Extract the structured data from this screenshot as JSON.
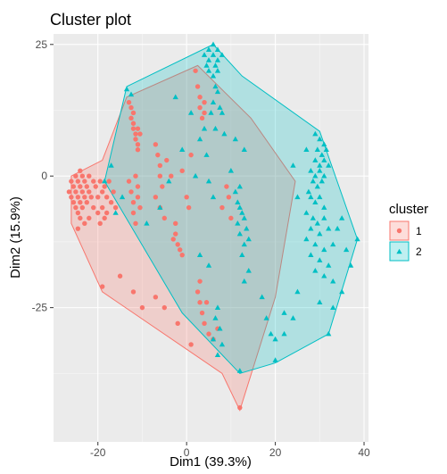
{
  "chart_data": {
    "type": "scatter",
    "title": "Cluster plot",
    "xlabel": "Dim1 (39.3%)",
    "ylabel": "Dim2 (15.9%)",
    "xlim": [
      -30,
      41
    ],
    "ylim": [
      -50.5,
      27
    ],
    "x_ticks": [
      -20,
      0,
      20,
      40
    ],
    "x_tick_labels": [
      "-20",
      "0",
      "20",
      "40"
    ],
    "y_ticks": [
      25,
      0,
      -25
    ],
    "y_tick_labels": [
      "25",
      "0",
      "-25"
    ],
    "grid": true,
    "panel_background": "#ebebeb",
    "legend_position": "right",
    "legend": {
      "title": "cluster",
      "entries": [
        {
          "label": "1",
          "color": "#f8766d",
          "shape": "circle"
        },
        {
          "label": "2",
          "color": "#00bfc4",
          "shape": "triangle"
        }
      ]
    },
    "series": [
      {
        "name": "1",
        "color": "#f8766d",
        "shape": "circle",
        "hull": [
          [
            -26,
            0
          ],
          [
            -19,
            3
          ],
          [
            -13.5,
            15
          ],
          [
            2.5,
            21
          ],
          [
            14.5,
            11
          ],
          [
            24.5,
            -1
          ],
          [
            20,
            -23
          ],
          [
            12,
            -44.5
          ],
          [
            8,
            -37.5
          ],
          [
            -19,
            -22
          ],
          [
            -26,
            -9
          ]
        ],
        "points": [
          [
            -26.5,
            -3
          ],
          [
            -26,
            -1
          ],
          [
            -26,
            -4
          ],
          [
            -25.5,
            -2
          ],
          [
            -25.5,
            -5
          ],
          [
            -25,
            0
          ],
          [
            -25,
            -3
          ],
          [
            -25,
            -6
          ],
          [
            -24.5,
            -1
          ],
          [
            -24.5,
            -4
          ],
          [
            -24.5,
            -7
          ],
          [
            -24,
            1
          ],
          [
            -24,
            -2
          ],
          [
            -24,
            -5
          ],
          [
            -24,
            -8
          ],
          [
            -23.5,
            0
          ],
          [
            -23.5,
            -3
          ],
          [
            -23.5,
            -6
          ],
          [
            -23,
            -1
          ],
          [
            -23,
            -4
          ],
          [
            -22.5,
            -2
          ],
          [
            -22.5,
            -5
          ],
          [
            -22,
            0
          ],
          [
            -22,
            -3
          ],
          [
            -21.5,
            -4
          ],
          [
            -21,
            -1
          ],
          [
            -21,
            -6
          ],
          [
            -20.5,
            -2
          ],
          [
            -20,
            -4
          ],
          [
            -20,
            -7
          ],
          [
            -19.5,
            -1
          ],
          [
            -19,
            -3
          ],
          [
            -19,
            -6
          ],
          [
            -18.5,
            -2
          ],
          [
            -18.5,
            -8
          ],
          [
            -18,
            -4
          ],
          [
            -18,
            -7
          ],
          [
            -17.5,
            -1
          ],
          [
            -17,
            -5
          ],
          [
            -16.5,
            -3
          ],
          [
            -16,
            -6
          ],
          [
            -24.5,
            -10
          ],
          [
            -23,
            -9
          ],
          [
            -22,
            -8
          ],
          [
            -19.5,
            -9
          ],
          [
            -13,
            14
          ],
          [
            -12.5,
            13
          ],
          [
            -12,
            12
          ],
          [
            -12.5,
            11
          ],
          [
            -12,
            10
          ],
          [
            -12,
            9
          ],
          [
            -11.5,
            8
          ],
          [
            -11,
            9
          ],
          [
            -11.5,
            7
          ],
          [
            -11,
            6
          ],
          [
            -10.5,
            8
          ],
          [
            -11,
            5
          ],
          [
            -13,
            -1
          ],
          [
            -12.5,
            -3
          ],
          [
            -12,
            -5
          ],
          [
            -12,
            -7
          ],
          [
            -11.5,
            -9
          ],
          [
            -11,
            -2
          ],
          [
            -11,
            -4
          ],
          [
            -11.5,
            0
          ],
          [
            -10.5,
            -6
          ],
          [
            -7,
            6
          ],
          [
            -6.5,
            4
          ],
          [
            -6,
            2
          ],
          [
            -6,
            0
          ],
          [
            -5.5,
            -2
          ],
          [
            -7,
            -4
          ],
          [
            -6,
            -6
          ],
          [
            -5,
            -8
          ],
          [
            -4.5,
            3
          ],
          [
            -2.5,
            -9
          ],
          [
            -2.5,
            -11
          ],
          [
            -2,
            -13
          ],
          [
            -3,
            -12
          ],
          [
            -1.5,
            -14
          ],
          [
            -1,
            -15
          ],
          [
            -3.5,
            0
          ],
          [
            -1,
            1
          ],
          [
            0,
            -4
          ],
          [
            0.5,
            -6
          ],
          [
            1,
            4
          ],
          [
            2,
            20
          ],
          [
            2.5,
            17
          ],
          [
            3,
            15
          ],
          [
            3,
            13
          ],
          [
            3.5,
            11
          ],
          [
            4,
            14
          ],
          [
            4,
            12
          ],
          [
            2.5,
            -22
          ],
          [
            3,
            -24
          ],
          [
            3.5,
            -26
          ],
          [
            4,
            -28
          ],
          [
            5,
            -30
          ],
          [
            6,
            -31
          ],
          [
            7,
            -29
          ],
          [
            4.5,
            -24
          ],
          [
            8,
            -6
          ],
          [
            9,
            -2
          ],
          [
            9.5,
            -4
          ],
          [
            10,
            -8
          ],
          [
            -19,
            -21
          ],
          [
            -15,
            -19
          ],
          [
            -12,
            -22
          ],
          [
            -10,
            -25
          ],
          [
            -7,
            -23
          ],
          [
            -5,
            -25
          ],
          [
            -2,
            -28
          ],
          [
            1,
            -32
          ],
          [
            3,
            -20
          ],
          [
            12,
            -44
          ]
        ]
      },
      {
        "name": "2",
        "color": "#00bfc4",
        "shape": "triangle",
        "hull": [
          [
            -18.5,
            -1
          ],
          [
            -13.5,
            17
          ],
          [
            6,
            25
          ],
          [
            12.5,
            19
          ],
          [
            30,
            8.5
          ],
          [
            38.5,
            -12
          ],
          [
            32,
            -30
          ],
          [
            20,
            -35.5
          ],
          [
            12,
            -37.5
          ],
          [
            -1,
            -26
          ]
        ],
        "points": [
          [
            6,
            25
          ],
          [
            5,
            24
          ],
          [
            7,
            24
          ],
          [
            4,
            23
          ],
          [
            6,
            23
          ],
          [
            8,
            23
          ],
          [
            5,
            22
          ],
          [
            7,
            22
          ],
          [
            4.5,
            21
          ],
          [
            6.5,
            21
          ],
          [
            5,
            20
          ],
          [
            7,
            20
          ],
          [
            6,
            19
          ],
          [
            6.5,
            17
          ],
          [
            7,
            16
          ],
          [
            6,
            14
          ],
          [
            7.5,
            13
          ],
          [
            5.5,
            12
          ],
          [
            8,
            12
          ],
          [
            4,
            9
          ],
          [
            6.5,
            9
          ],
          [
            8.5,
            8
          ],
          [
            11,
            7
          ],
          [
            -13.5,
            16.5
          ],
          [
            -12.5,
            15.5
          ],
          [
            -2.5,
            15
          ],
          [
            1,
            12
          ],
          [
            3,
            7
          ],
          [
            4.5,
            4
          ],
          [
            -1,
            5
          ],
          [
            2,
            0
          ],
          [
            -4,
            -1
          ],
          [
            -6,
            -6
          ],
          [
            -9,
            -9
          ],
          [
            -14.5,
            -4
          ],
          [
            -16,
            -7
          ],
          [
            -18.5,
            -1
          ],
          [
            -17,
            2
          ],
          [
            5,
            -1
          ],
          [
            6,
            -4
          ],
          [
            10,
            1
          ],
          [
            13,
            5
          ],
          [
            12,
            -2
          ],
          [
            11,
            -3
          ],
          [
            11.5,
            -5
          ],
          [
            12,
            -6
          ],
          [
            12.5,
            -7
          ],
          [
            13,
            -8
          ],
          [
            11.5,
            -9
          ],
          [
            13.5,
            -10
          ],
          [
            12,
            -11
          ],
          [
            13,
            -13
          ],
          [
            14,
            -12
          ],
          [
            12.5,
            -15
          ],
          [
            14,
            -18
          ],
          [
            13,
            -20
          ],
          [
            5,
            -17
          ],
          [
            3,
            -15
          ],
          [
            7,
            -25
          ],
          [
            6.5,
            -27
          ],
          [
            7.5,
            -29
          ],
          [
            6,
            -31
          ],
          [
            8,
            -32
          ],
          [
            7,
            -34
          ],
          [
            17,
            -23
          ],
          [
            18,
            -27
          ],
          [
            19,
            -30
          ],
          [
            20,
            -35
          ],
          [
            22,
            -26
          ],
          [
            12,
            -37
          ],
          [
            29,
            8
          ],
          [
            30,
            7
          ],
          [
            31,
            6
          ],
          [
            29.5,
            5
          ],
          [
            30.5,
            4
          ],
          [
            31.5,
            5
          ],
          [
            29,
            3
          ],
          [
            30,
            2
          ],
          [
            31,
            3
          ],
          [
            32,
            2
          ],
          [
            28,
            1
          ],
          [
            29,
            0
          ],
          [
            30,
            1
          ],
          [
            31,
            0
          ],
          [
            28.5,
            -1
          ],
          [
            29.5,
            -2
          ],
          [
            30.5,
            -1
          ],
          [
            27.5,
            -3
          ],
          [
            28,
            -4
          ],
          [
            29,
            -5
          ],
          [
            30,
            -4
          ],
          [
            31,
            -6
          ],
          [
            27,
            -7
          ],
          [
            28.5,
            -8
          ],
          [
            29.5,
            -9
          ],
          [
            31,
            -8
          ],
          [
            28,
            -10
          ],
          [
            30,
            -11
          ],
          [
            32,
            -10
          ],
          [
            27,
            -12
          ],
          [
            29,
            -13
          ],
          [
            31,
            -14
          ],
          [
            33,
            -13
          ],
          [
            28,
            -15
          ],
          [
            30,
            -16
          ],
          [
            32,
            -17
          ],
          [
            29,
            -18
          ],
          [
            31,
            -19
          ],
          [
            33,
            -20
          ],
          [
            34,
            -10
          ],
          [
            35,
            -8
          ],
          [
            36,
            -14
          ],
          [
            37,
            -17
          ],
          [
            38.5,
            -12
          ],
          [
            35,
            -22
          ],
          [
            33,
            -25
          ],
          [
            32,
            -30
          ],
          [
            30,
            -24
          ],
          [
            25,
            -22
          ],
          [
            24,
            -27
          ],
          [
            22,
            -30
          ],
          [
            20,
            -31
          ],
          [
            24,
            2
          ],
          [
            25,
            -4
          ],
          [
            27,
            5
          ]
        ]
      }
    ]
  }
}
